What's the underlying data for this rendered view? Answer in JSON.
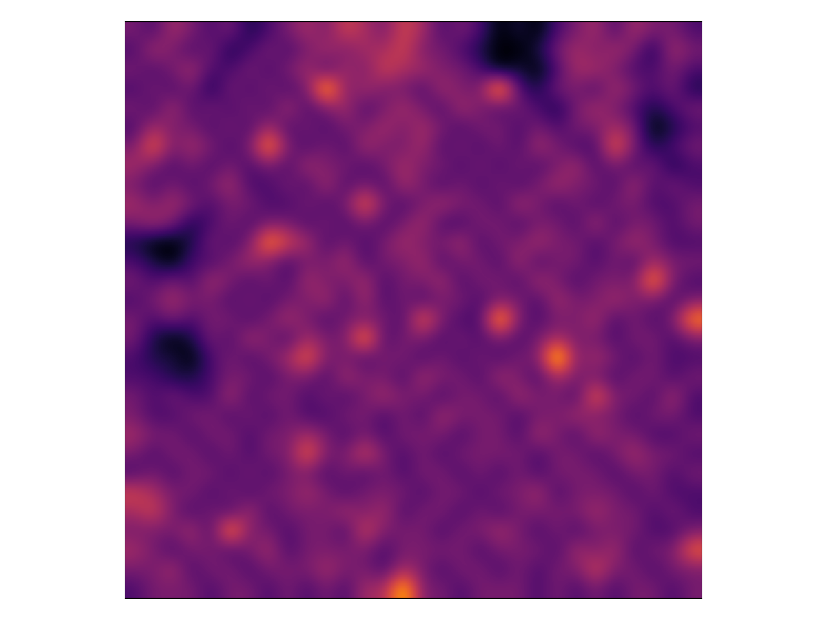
{
  "chart_data": {
    "type": "heatmap",
    "tick_labels": false,
    "value_range": [
      0,
      9
    ],
    "cells": [
      [
        3,
        2,
        4,
        3,
        2,
        3,
        1,
        2,
        3,
        4,
        3,
        5,
        4,
        3,
        5,
        4,
        2,
        3,
        2,
        0,
        1,
        0,
        2,
        3,
        4,
        2,
        4,
        3,
        3,
        2
      ],
      [
        2,
        4,
        3,
        2,
        3,
        1,
        2,
        3,
        2,
        3,
        4,
        3,
        4,
        4,
        5,
        3,
        3,
        2,
        1,
        0,
        0,
        1,
        3,
        4,
        3,
        4,
        3,
        1,
        4,
        3
      ],
      [
        3,
        2,
        3,
        4,
        2,
        2,
        3,
        2,
        3,
        4,
        2,
        4,
        3,
        5,
        4,
        4,
        3,
        3,
        2,
        0,
        1,
        0,
        2,
        4,
        4,
        3,
        2,
        2,
        3,
        2
      ],
      [
        2,
        3,
        2,
        3,
        1,
        3,
        2,
        3,
        2,
        3,
        8,
        3,
        4,
        3,
        3,
        2,
        4,
        3,
        3,
        8,
        2,
        1,
        3,
        3,
        2,
        4,
        3,
        2,
        3,
        1
      ],
      [
        3,
        2,
        4,
        2,
        3,
        2,
        3,
        2,
        4,
        2,
        3,
        4,
        2,
        3,
        4,
        3,
        2,
        4,
        3,
        2,
        3,
        2,
        1,
        3,
        4,
        3,
        2,
        1,
        2,
        3
      ],
      [
        2,
        4,
        3,
        3,
        2,
        3,
        2,
        4,
        2,
        3,
        2,
        3,
        3,
        4,
        3,
        4,
        3,
        2,
        3,
        3,
        2,
        3,
        2,
        3,
        3,
        4,
        3,
        0,
        1,
        2
      ],
      [
        3,
        6,
        3,
        4,
        3,
        2,
        3,
        7,
        3,
        2,
        3,
        2,
        4,
        3,
        3,
        4,
        2,
        3,
        2,
        3,
        2,
        4,
        3,
        2,
        2,
        6,
        3,
        1,
        2,
        3
      ],
      [
        4,
        3,
        2,
        3,
        2,
        3,
        2,
        3,
        2,
        4,
        3,
        3,
        2,
        3,
        4,
        3,
        3,
        2,
        3,
        2,
        3,
        2,
        3,
        4,
        2,
        3,
        2,
        3,
        1,
        2
      ],
      [
        3,
        2,
        3,
        2,
        3,
        4,
        2,
        2,
        3,
        2,
        4,
        2,
        3,
        2,
        4,
        3,
        2,
        3,
        2,
        3,
        2,
        3,
        4,
        3,
        3,
        2,
        4,
        2,
        3,
        2
      ],
      [
        4,
        3,
        4,
        3,
        2,
        3,
        3,
        2,
        2,
        3,
        2,
        3,
        6,
        3,
        2,
        3,
        4,
        3,
        3,
        2,
        4,
        3,
        2,
        3,
        2,
        3,
        3,
        2,
        2,
        3
      ],
      [
        3,
        4,
        3,
        1,
        2,
        3,
        2,
        3,
        3,
        2,
        3,
        2,
        3,
        2,
        3,
        4,
        2,
        2,
        3,
        3,
        2,
        3,
        3,
        2,
        4,
        2,
        3,
        3,
        2,
        3
      ],
      [
        1,
        0,
        0,
        1,
        3,
        2,
        3,
        7,
        5,
        4,
        2,
        3,
        2,
        3,
        4,
        3,
        3,
        4,
        2,
        3,
        3,
        4,
        3,
        3,
        2,
        3,
        4,
        3,
        2,
        2
      ],
      [
        2,
        1,
        0,
        2,
        2,
        3,
        4,
        3,
        2,
        3,
        3,
        4,
        2,
        3,
        3,
        4,
        2,
        3,
        3,
        2,
        4,
        2,
        3,
        3,
        2,
        3,
        2,
        4,
        3,
        3
      ],
      [
        3,
        2,
        3,
        2,
        4,
        3,
        2,
        3,
        2,
        4,
        3,
        3,
        4,
        2,
        3,
        3,
        4,
        2,
        3,
        3,
        2,
        4,
        3,
        2,
        3,
        3,
        3,
        7,
        3,
        2
      ],
      [
        2,
        3,
        4,
        3,
        3,
        2,
        3,
        2,
        3,
        3,
        4,
        2,
        4,
        2,
        3,
        2,
        3,
        3,
        2,
        3,
        3,
        2,
        4,
        3,
        3,
        4,
        3,
        3,
        2,
        3
      ],
      [
        3,
        2,
        3,
        2,
        3,
        3,
        2,
        3,
        4,
        3,
        2,
        3,
        3,
        3,
        2,
        6,
        3,
        2,
        2,
        8,
        3,
        2,
        3,
        3,
        4,
        2,
        3,
        2,
        3,
        7
      ],
      [
        3,
        1,
        0,
        1,
        3,
        2,
        4,
        3,
        2,
        4,
        3,
        3,
        7,
        2,
        3,
        3,
        2,
        3,
        2,
        3,
        2,
        3,
        4,
        3,
        3,
        2,
        3,
        3,
        2,
        3
      ],
      [
        2,
        1,
        1,
        0,
        2,
        3,
        2,
        3,
        4,
        6,
        3,
        3,
        2,
        3,
        3,
        2,
        3,
        2,
        3,
        2,
        3,
        3,
        9,
        3,
        4,
        3,
        2,
        3,
        2,
        2
      ],
      [
        2,
        2,
        1,
        1,
        2,
        3,
        3,
        2,
        3,
        3,
        2,
        4,
        3,
        3,
        2,
        4,
        3,
        3,
        2,
        4,
        3,
        2,
        4,
        3,
        3,
        2,
        3,
        3,
        2,
        3
      ],
      [
        3,
        2,
        3,
        2,
        2,
        4,
        2,
        3,
        3,
        2,
        3,
        2,
        3,
        4,
        3,
        3,
        2,
        3,
        3,
        2,
        4,
        3,
        3,
        2,
        6,
        3,
        3,
        2,
        4,
        2
      ],
      [
        3,
        2,
        2,
        3,
        3,
        2,
        3,
        2,
        3,
        2,
        2,
        3,
        3,
        2,
        3,
        2,
        4,
        3,
        3,
        3,
        2,
        3,
        3,
        4,
        3,
        3,
        2,
        3,
        3,
        2
      ],
      [
        4,
        3,
        3,
        2,
        3,
        3,
        2,
        3,
        3,
        4,
        3,
        2,
        3,
        2,
        3,
        3,
        3,
        2,
        3,
        3,
        2,
        4,
        3,
        2,
        4,
        3,
        3,
        2,
        2,
        3
      ],
      [
        3,
        2,
        3,
        3,
        2,
        3,
        2,
        3,
        3,
        6,
        3,
        3,
        5,
        3,
        2,
        3,
        2,
        3,
        3,
        3,
        3,
        2,
        3,
        3,
        2,
        3,
        4,
        3,
        3,
        2
      ],
      [
        2,
        3,
        2,
        3,
        3,
        2,
        3,
        2,
        3,
        3,
        2,
        3,
        2,
        3,
        2,
        3,
        3,
        2,
        3,
        2,
        3,
        2,
        3,
        3,
        3,
        2,
        3,
        3,
        2,
        3
      ],
      [
        5,
        4,
        3,
        3,
        2,
        3,
        2,
        3,
        3,
        4,
        3,
        2,
        3,
        3,
        3,
        2,
        3,
        3,
        2,
        3,
        3,
        4,
        2,
        3,
        3,
        3,
        2,
        3,
        2,
        2
      ],
      [
        4,
        5,
        3,
        2,
        3,
        2,
        4,
        2,
        3,
        3,
        3,
        4,
        3,
        4,
        2,
        3,
        3,
        2,
        3,
        2,
        3,
        3,
        3,
        3,
        4,
        3,
        3,
        2,
        3,
        2
      ],
      [
        3,
        3,
        3,
        4,
        2,
        7,
        3,
        3,
        2,
        3,
        3,
        2,
        5,
        3,
        3,
        3,
        2,
        3,
        3,
        4,
        3,
        2,
        3,
        2,
        3,
        3,
        3,
        2,
        2,
        3
      ],
      [
        4,
        3,
        2,
        3,
        3,
        2,
        3,
        4,
        2,
        3,
        3,
        3,
        3,
        2,
        3,
        3,
        3,
        3,
        2,
        3,
        3,
        3,
        2,
        4,
        3,
        4,
        2,
        3,
        3,
        6
      ],
      [
        3,
        3,
        4,
        2,
        3,
        3,
        2,
        3,
        3,
        3,
        4,
        3,
        3,
        2,
        4,
        3,
        2,
        3,
        3,
        2,
        3,
        2,
        3,
        3,
        5,
        3,
        3,
        2,
        3,
        3
      ],
      [
        2,
        3,
        3,
        3,
        2,
        3,
        3,
        2,
        3,
        2,
        3,
        2,
        4,
        4,
        8,
        3,
        3,
        2,
        3,
        3,
        3,
        2,
        3,
        2,
        3,
        2,
        3,
        3,
        2,
        3
      ]
    ]
  }
}
